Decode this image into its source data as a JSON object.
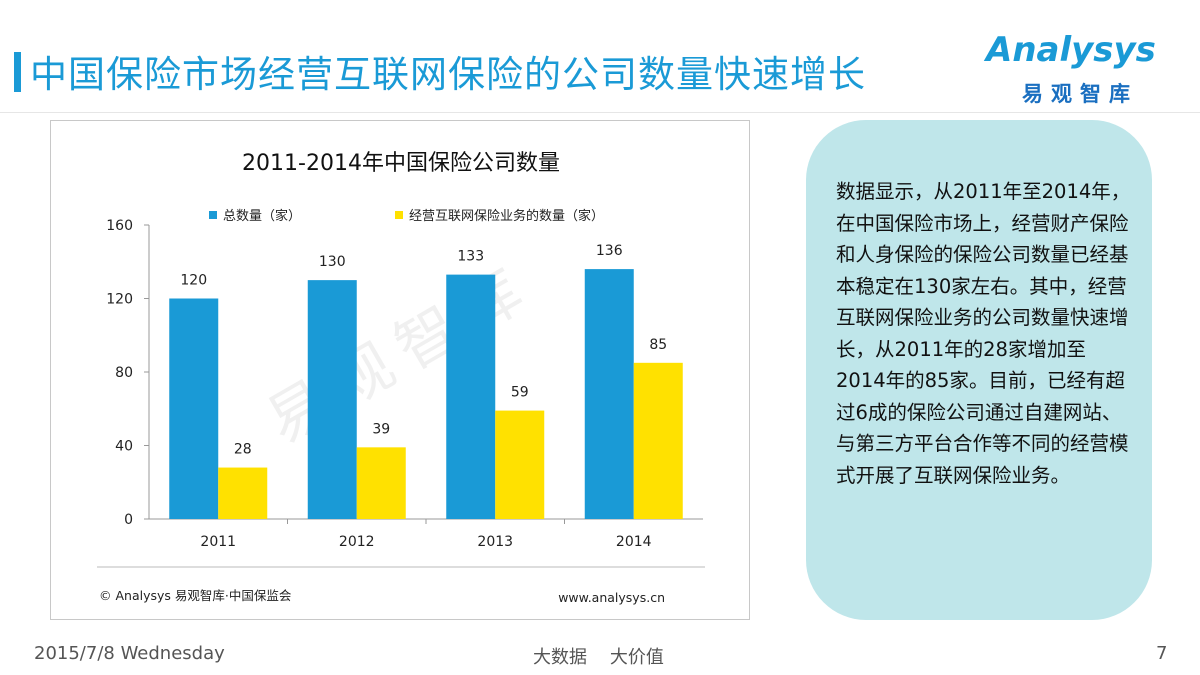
{
  "header": {
    "title": "中国保险市场经营互联网保险的公司数量快速增长",
    "logo_text": "Analysys",
    "logo_sub": "易观智库"
  },
  "chart_data": {
    "type": "bar",
    "title": "2011-2014年中国保险公司数量",
    "categories": [
      "2011",
      "2012",
      "2013",
      "2014"
    ],
    "series": [
      {
        "name": "总数量（家）",
        "values": [
          120,
          130,
          133,
          136
        ],
        "color": "#1a9ad6"
      },
      {
        "name": "经营互联网保险业务的数量（家）",
        "values": [
          28,
          39,
          59,
          85
        ],
        "color": "#ffe100"
      }
    ],
    "yticks": [
      0,
      40,
      80,
      120,
      160
    ],
    "ylim": [
      0,
      160
    ],
    "legend_position": "top",
    "watermark": "易观智库",
    "source": "© Analysys 易观智库·中国保监会",
    "website": "www.analysys.cn"
  },
  "side_panel": {
    "text": "数据显示，从2011年至2014年，在中国保险市场上，经营财产保险和人身保险的保险公司数量已经基本稳定在130家左右。其中，经营互联网保险业务的公司数量快速增长，从2011年的28家增加至2014年的85家。目前，已经有超过6成的保险公司通过自建网站、与第三方平台合作等不同的经营模式开展了互联网保险业务。"
  },
  "footer": {
    "date": "2015/7/8 Wednesday",
    "center": "大数据    大价值",
    "page": "7"
  },
  "colors": {
    "accent": "#1a9ad6",
    "bar_total": "#1a9ad6",
    "bar_internet": "#ffe100",
    "panel_bg": "#bfe6ea"
  }
}
